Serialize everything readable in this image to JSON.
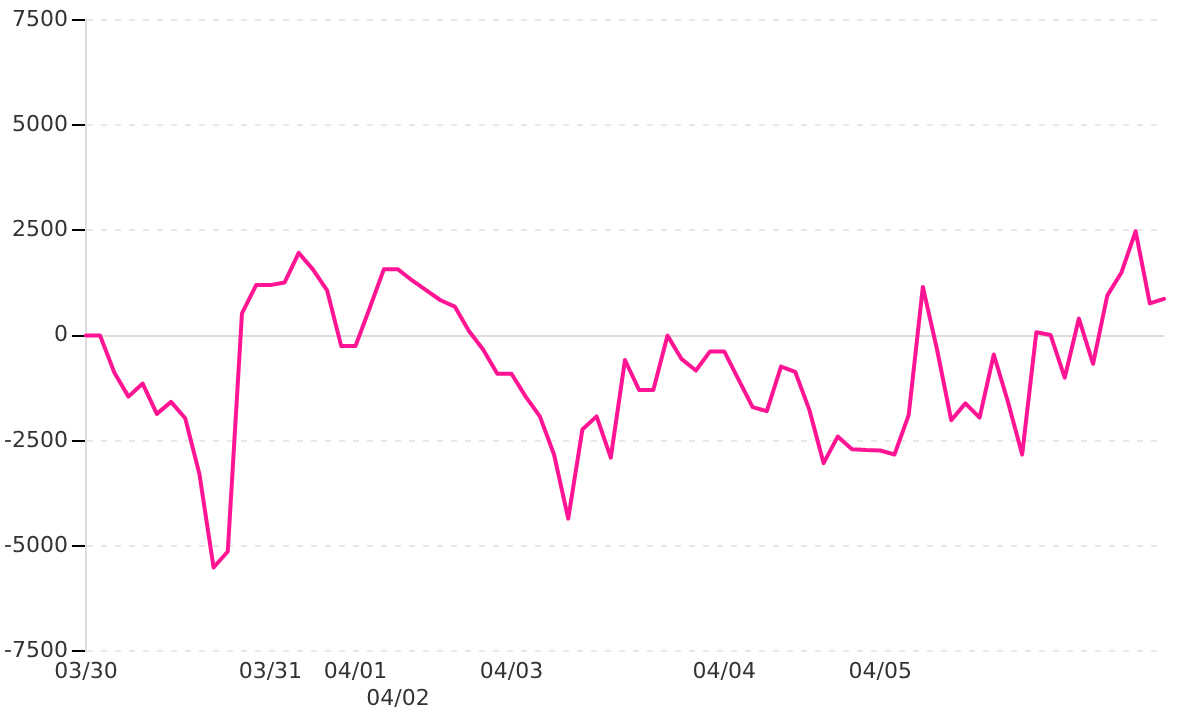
{
  "chart_data": {
    "type": "line",
    "categories": [
      "03/30",
      null,
      null,
      null,
      null,
      null,
      null,
      null,
      null,
      null,
      null,
      null,
      null,
      "03/31",
      null,
      null,
      null,
      null,
      null,
      "04/01",
      null,
      null,
      "04/02",
      null,
      null,
      null,
      null,
      null,
      null,
      null,
      "04/03",
      null,
      null,
      null,
      null,
      null,
      null,
      null,
      null,
      null,
      null,
      null,
      null,
      null,
      null,
      "04/04",
      null,
      null,
      null,
      null,
      null,
      null,
      null,
      null,
      null,
      null,
      "04/05",
      null,
      null,
      null,
      null,
      null,
      null,
      null,
      null,
      null,
      null,
      null,
      null,
      null,
      null,
      null,
      null,
      null,
      null,
      null,
      null
    ],
    "series": [
      {
        "color": "#ff1493",
        "values": [
          0,
          0,
          -875,
          -1450,
          -1140,
          -1860,
          -1575,
          -1965,
          -3290,
          -5510,
          -5130,
          530,
          1200,
          1200,
          1260,
          1965,
          1575,
          1075,
          -250,
          -250,
          650,
          1575,
          1575,
          1310,
          1075,
          840,
          690,
          110,
          -330,
          -905,
          -905,
          -1450,
          -1920,
          -2825,
          -4350,
          -2230,
          -1920,
          -2900,
          -580,
          -1295,
          -1295,
          0,
          -560,
          -830,
          -375,
          -375,
          -1040,
          -1700,
          -1795,
          -735,
          -860,
          -1765,
          -3030,
          -2400,
          -2700,
          -2720,
          -2730,
          -2825,
          -1890,
          1155,
          -330,
          -2010,
          -1610,
          -1950,
          -450,
          -1575,
          -2825,
          80,
          15,
          -1000,
          405,
          -670,
          950,
          1500,
          2480,
          765,
          875
        ]
      }
    ],
    "ylim": [
      -7500,
      7500
    ],
    "yticks": [
      -7500,
      -5000,
      -2500,
      0,
      2500,
      5000,
      7500
    ],
    "grid": "y",
    "legend": false,
    "marker": "none",
    "line_style": "solid"
  }
}
